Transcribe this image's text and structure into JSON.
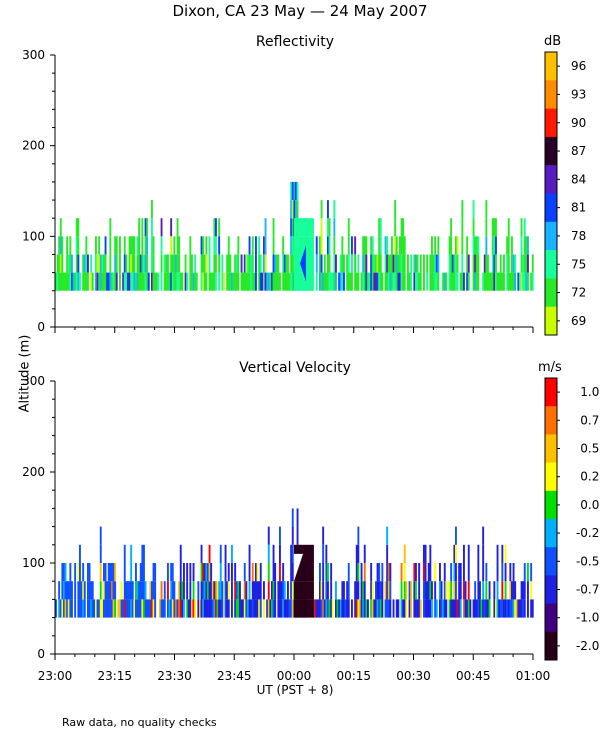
{
  "figure_title": "Dixon, CA 23 May — 24 May 2007",
  "y_axis_label": "Altitude (m)",
  "x_axis_label": "UT  (PST + 8)",
  "footer_note": "Raw data, no quality checks",
  "chart_data": [
    {
      "type": "heatmap",
      "title": "Reflectivity",
      "xlabel": "UT  (PST + 8)",
      "ylabel": "Altitude (m)",
      "x_ticks": [
        "23:00",
        "23:15",
        "23:30",
        "23:45",
        "00:00",
        "00:15",
        "00:30",
        "00:45",
        "01:00"
      ],
      "x_range_minutes": [
        0,
        120
      ],
      "ylim": [
        0,
        300
      ],
      "y_ticks": [
        0,
        100,
        200,
        300
      ],
      "colorbar": {
        "unit": "dB",
        "labels": [
          "96",
          "93",
          "90",
          "87",
          "84",
          "81",
          "78",
          "75",
          "72",
          "69"
        ],
        "colors": [
          "#ffc000",
          "#ff8c00",
          "#ff1a00",
          "#2a0028",
          "#5a1cc0",
          "#0a40ff",
          "#18b4ff",
          "#18ff9a",
          "#28e828",
          "#c8ff00"
        ]
      },
      "echo_layer_altitude_m": [
        40,
        120
      ],
      "max_echo_top_m": 160
    },
    {
      "type": "heatmap",
      "title": "Vertical Velocity",
      "xlabel": "UT  (PST + 8)",
      "ylabel": "Altitude (m)",
      "x_ticks": [
        "23:00",
        "23:15",
        "23:30",
        "23:45",
        "00:00",
        "00:15",
        "00:30",
        "00:45",
        "01:00"
      ],
      "x_range_minutes": [
        0,
        120
      ],
      "ylim": [
        0,
        300
      ],
      "y_ticks": [
        0,
        100,
        200,
        300
      ],
      "colorbar": {
        "unit": "m/s",
        "labels": [
          "1.00",
          "0.75",
          "0.50",
          "0.25",
          "0.00",
          "-0.25",
          "-0.50",
          "-0.75",
          "-1.00",
          "-2.00"
        ],
        "colors": [
          "#ff0000",
          "#ff7000",
          "#ffc000",
          "#ffff00",
          "#00e000",
          "#00b0ff",
          "#1050ff",
          "#2020e0",
          "#400080",
          "#280018"
        ]
      },
      "echo_layer_altitude_m": [
        40,
        120
      ],
      "max_echo_top_m": 160
    }
  ]
}
